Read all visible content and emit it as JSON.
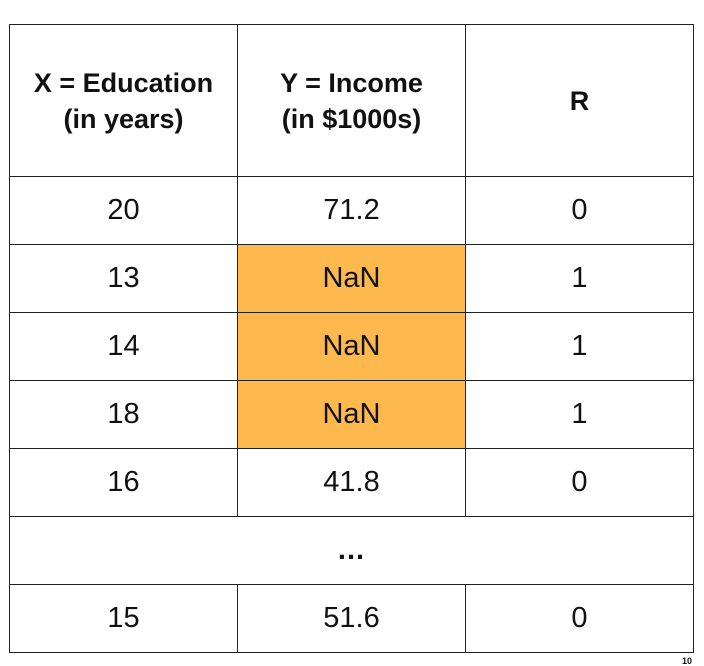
{
  "colors": {
    "missing_highlight": "#FDB94D",
    "border": "#222222"
  },
  "table": {
    "headers": [
      {
        "line1": "X = Education",
        "line2": "(in years)"
      },
      {
        "line1": "Y = Income",
        "line2": "(in $1000s)"
      },
      {
        "line1": "R",
        "line2": ""
      }
    ],
    "rows": [
      {
        "x": "20",
        "y": "71.2",
        "r": "0"
      },
      {
        "x": "13",
        "y": "NaN",
        "r": "1"
      },
      {
        "x": "14",
        "y": "NaN",
        "r": "1"
      },
      {
        "x": "18",
        "y": "NaN",
        "r": "1"
      },
      {
        "x": "16",
        "y": "41.8",
        "r": "0"
      }
    ],
    "ellipsis": "...",
    "last_row": {
      "x": "15",
      "y": "51.6",
      "r": "0"
    }
  },
  "page_number": "10"
}
